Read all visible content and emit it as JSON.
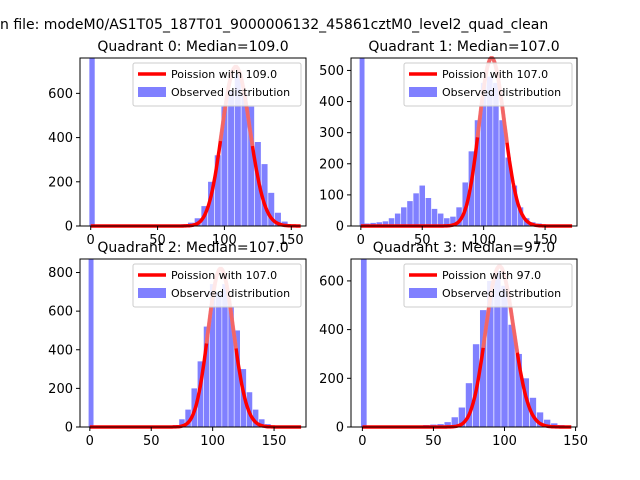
{
  "suptitle": "n file: modeM0/AS1T05_187T01_9000006132_45861cztM0_level2_quad_clean",
  "legend_labels": {
    "observed": "Observed distribution"
  },
  "colors": {
    "hist": "#8080ff",
    "poisson": "#ff0000",
    "poisson_peak": "#f08080"
  },
  "chart_data": [
    {
      "type": "bar",
      "title": "Quadrant 0: Median=109.0",
      "poisson_label": "Poission with 109.0",
      "median": 109.0,
      "poisson_peak": 720,
      "xlim": [
        -8,
        161
      ],
      "ylim": [
        0,
        760
      ],
      "xticks": [
        0,
        50,
        100,
        150
      ],
      "yticks": [
        0,
        200,
        400,
        600
      ],
      "zero_bin_count": 760,
      "x": [
        55,
        60,
        65,
        70,
        75,
        80,
        85,
        90,
        95,
        100,
        105,
        110,
        115,
        120,
        125,
        130,
        135,
        140,
        145,
        150,
        155
      ],
      "counts": [
        2,
        4,
        5,
        8,
        15,
        35,
        90,
        200,
        320,
        540,
        610,
        690,
        600,
        540,
        380,
        280,
        150,
        60,
        20,
        6,
        2
      ]
    },
    {
      "type": "bar",
      "title": "Quadrant 1: Median=107.0",
      "poisson_label": "Poission with 107.0",
      "median": 107.0,
      "poisson_peak": 540,
      "xlim": [
        -8,
        176
      ],
      "ylim": [
        0,
        540
      ],
      "xticks": [
        0,
        50,
        100,
        150
      ],
      "yticks": [
        0,
        100,
        200,
        300,
        400,
        500
      ],
      "zero_bin_count": 540,
      "x": [
        5,
        10,
        15,
        20,
        25,
        30,
        35,
        40,
        45,
        50,
        55,
        60,
        65,
        70,
        75,
        80,
        85,
        90,
        95,
        100,
        105,
        110,
        115,
        120,
        125,
        130,
        135,
        140,
        145,
        150,
        155,
        160
      ],
      "counts": [
        8,
        10,
        12,
        15,
        25,
        40,
        60,
        80,
        105,
        130,
        90,
        55,
        40,
        25,
        30,
        60,
        140,
        240,
        340,
        460,
        480,
        460,
        340,
        220,
        130,
        60,
        25,
        12,
        8,
        5,
        3,
        2
      ]
    },
    {
      "type": "bar",
      "title": "Quadrant 2: Median=107.0",
      "poisson_label": "Poission with 107.0",
      "median": 107.0,
      "poisson_peak": 820,
      "xlim": [
        -8,
        176
      ],
      "ylim": [
        0,
        870
      ],
      "xticks": [
        0,
        50,
        100,
        150
      ],
      "yticks": [
        0,
        200,
        400,
        600,
        800
      ],
      "zero_bin_count": 870,
      "x": [
        60,
        65,
        70,
        75,
        80,
        85,
        90,
        95,
        100,
        105,
        110,
        115,
        120,
        125,
        130,
        135,
        140,
        145,
        150,
        155,
        160
      ],
      "counts": [
        3,
        6,
        10,
        40,
        90,
        200,
        340,
        520,
        740,
        700,
        740,
        620,
        500,
        300,
        180,
        90,
        40,
        15,
        6,
        3,
        2
      ]
    },
    {
      "type": "bar",
      "title": "Quadrant 3: Median=97.0",
      "poisson_label": "Poission with 97.0",
      "median": 97.0,
      "poisson_peak": 660,
      "xlim": [
        -8,
        151
      ],
      "ylim": [
        0,
        690
      ],
      "xticks": [
        0,
        50,
        100,
        150
      ],
      "yticks": [
        0,
        200,
        400,
        600
      ],
      "zero_bin_count": 690,
      "x": [
        45,
        50,
        55,
        60,
        65,
        70,
        75,
        80,
        85,
        90,
        95,
        100,
        105,
        110,
        115,
        120,
        125,
        130,
        135,
        140
      ],
      "counts": [
        8,
        10,
        12,
        20,
        40,
        80,
        180,
        340,
        480,
        600,
        640,
        580,
        420,
        300,
        200,
        120,
        60,
        30,
        15,
        8
      ]
    }
  ]
}
